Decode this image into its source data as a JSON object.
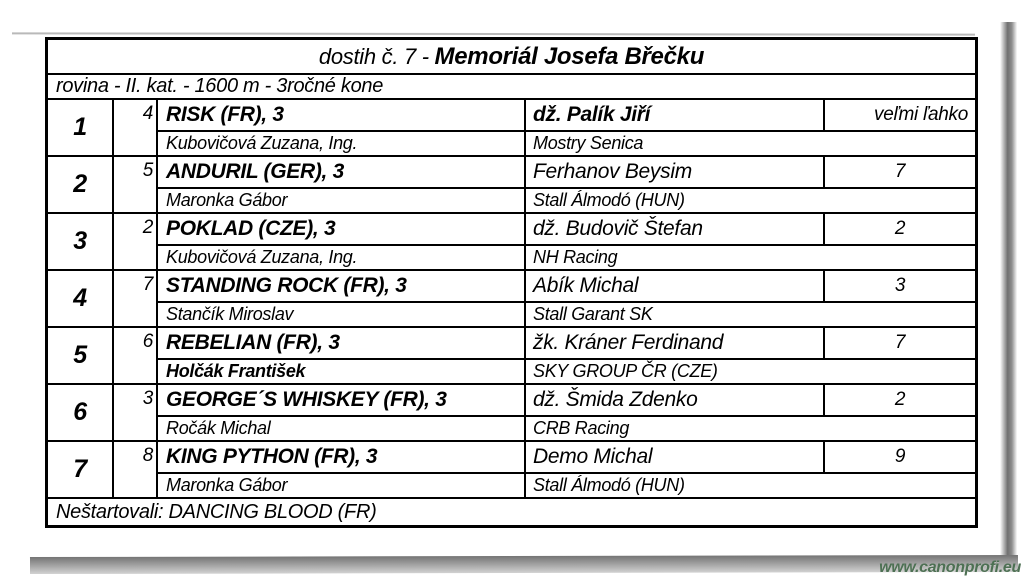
{
  "title": {
    "prefix": "dostih č. 7 - ",
    "name": "Memoriál Josefa Břečku"
  },
  "subtitle": "rovina - II. kat. - 1600 m - 3ročné kone",
  "rows": [
    {
      "place": "1",
      "number": "4",
      "horse": "RISK (FR), 3",
      "jockey": "dž. Palík Jiří",
      "jockey_bold": true,
      "result": "veľmi ľahko",
      "result_align": "right",
      "trainer": "Kubovičová Zuzana, Ing.",
      "trainer_bold": false,
      "owner": "Mostry Senica"
    },
    {
      "place": "2",
      "number": "5",
      "horse": "ANDURIL (GER), 3",
      "jockey": "Ferhanov Beysim",
      "jockey_bold": false,
      "result": "7",
      "result_align": "center",
      "trainer": "Maronka Gábor",
      "trainer_bold": false,
      "owner": "Stall Álmodó (HUN)"
    },
    {
      "place": "3",
      "number": "2",
      "horse": "POKLAD (CZE), 3",
      "jockey": "dž. Budovič Štefan",
      "jockey_bold": false,
      "result": "2",
      "result_align": "center",
      "trainer": "Kubovičová Zuzana, Ing.",
      "trainer_bold": false,
      "owner": "NH Racing"
    },
    {
      "place": "4",
      "number": "7",
      "horse": "STANDING ROCK (FR), 3",
      "jockey": "Abík Michal",
      "jockey_bold": false,
      "result": "3",
      "result_align": "center",
      "trainer": "Stančík Miroslav",
      "trainer_bold": false,
      "owner": "Stall Garant SK"
    },
    {
      "place": "5",
      "number": "6",
      "horse": "REBELIAN (FR), 3",
      "jockey": "žk. Kráner Ferdinand",
      "jockey_bold": false,
      "result": "7",
      "result_align": "center",
      "trainer": "Holčák František",
      "trainer_bold": true,
      "owner": "SKY GROUP ČR (CZE)"
    },
    {
      "place": "6",
      "number": "3",
      "horse": "GEORGE´S WHISKEY (FR), 3",
      "jockey": "dž. Šmida Zdenko",
      "jockey_bold": false,
      "result": "2",
      "result_align": "center",
      "trainer": "Ročák Michal",
      "trainer_bold": false,
      "owner": "CRB Racing"
    },
    {
      "place": "7",
      "number": "8",
      "horse": "KING PYTHON (FR), 3",
      "jockey": "Demo Michal",
      "jockey_bold": false,
      "result": "9",
      "result_align": "center",
      "trainer": "Maronka Gábor",
      "trainer_bold": false,
      "owner": "Stall Álmodó (HUN)"
    }
  ],
  "footer_note": "Neštartovali: DANCING BLOOD (FR)",
  "watermark": "www.canonprofi.eu",
  "colors": {
    "watermark_green": "#4d7053",
    "border_black": "#000000",
    "shadow_gray": "#747474"
  }
}
